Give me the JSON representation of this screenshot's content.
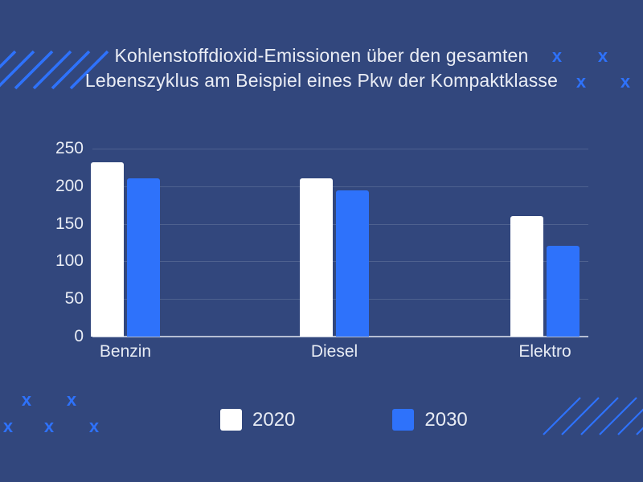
{
  "page": {
    "background_color": "#32477d",
    "accent_color": "#2e72fb",
    "text_color": "#e8ecf4"
  },
  "title": {
    "line1": "Kohlenstoffdioxid-Emissionen über den gesamten",
    "line2": "Lebenszyklus am Beispiel eines Pkw der Kompaktklasse"
  },
  "decor": {
    "x_mark_char": "x",
    "stripe_color": "#2e72fb"
  },
  "chart_data": {
    "type": "bar",
    "title": "Kohlenstoffdioxid-Emissionen über den gesamten Lebenszyklus am Beispiel eines Pkw der Kompaktklasse",
    "categories": [
      "Benzin",
      "Diesel",
      "Elektro"
    ],
    "series": [
      {
        "name": "2020",
        "color": "#ffffff",
        "values": [
          232,
          210,
          160
        ]
      },
      {
        "name": "2030",
        "color": "#2e72fb",
        "values": [
          211,
          194,
          121
        ]
      }
    ],
    "xlabel": "",
    "ylabel": "",
    "ylim": [
      0,
      250
    ],
    "yticks": [
      0,
      50,
      100,
      150,
      200,
      250
    ],
    "grid": true,
    "legend_position": "bottom"
  }
}
